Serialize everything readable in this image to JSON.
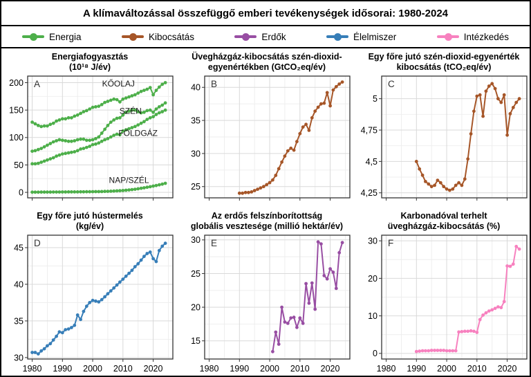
{
  "figure_title": "A klímaváltozással összefüggő emberi tevékenységek idősorai: 1980-2024",
  "legend": {
    "items": [
      {
        "label": "Energia",
        "color": "#4DAF4A"
      },
      {
        "label": "Kibocsátás",
        "color": "#A65628"
      },
      {
        "label": "Erdők",
        "color": "#984EA3"
      },
      {
        "label": "Élelmiszer",
        "color": "#377EB8"
      },
      {
        "label": "Intézkedés",
        "color": "#F781BF"
      }
    ]
  },
  "chart_data": [
    {
      "type": "line",
      "tag": "A",
      "title_line1": "Energiafogyasztás",
      "title_line2": "(10¹⁸ J/év)",
      "color": "#4DAF4A",
      "start_year": 1980,
      "xlim": [
        1978.5,
        2026.5
      ],
      "ylim": [
        -10,
        212
      ],
      "xticks": [
        1980,
        1990,
        2000,
        2010,
        2020
      ],
      "xtick_labels": [
        "1980",
        "1990",
        "2000",
        "2010",
        "2020"
      ],
      "show_x_labels": false,
      "yticks": [
        0,
        50,
        100,
        150,
        200
      ],
      "ytick_labels": [
        "0",
        "50",
        "100",
        "150",
        "200"
      ],
      "series": [
        {
          "name": "KŐOLAJ",
          "values": [
            128,
            125,
            122,
            120,
            121,
            121,
            124,
            126,
            130,
            132,
            134,
            134,
            136,
            136,
            139,
            141,
            144,
            147,
            149,
            152,
            155,
            156,
            157,
            160,
            164,
            166,
            168,
            170,
            169,
            165,
            170,
            172,
            174,
            176,
            178,
            181,
            184,
            186,
            188,
            191,
            178,
            186,
            192,
            197,
            200
          ]
        },
        {
          "name": "SZÉN",
          "values": [
            75,
            76,
            78,
            80,
            83,
            86,
            89,
            92,
            94,
            96,
            95,
            94,
            93,
            93,
            94,
            96,
            97,
            97,
            95,
            95,
            96,
            98,
            101,
            108,
            115,
            122,
            128,
            132,
            135,
            136,
            141,
            146,
            148,
            150,
            150,
            147,
            145,
            146,
            149,
            150,
            146,
            152,
            156,
            159,
            163
          ]
        },
        {
          "name": "FÖLDGÁZ",
          "values": [
            52,
            52,
            53,
            55,
            57,
            59,
            61,
            63,
            66,
            68,
            70,
            71,
            72,
            73,
            74,
            76,
            79,
            80,
            82,
            84,
            87,
            88,
            90,
            93,
            96,
            98,
            101,
            104,
            106,
            105,
            112,
            114,
            116,
            118,
            120,
            123,
            126,
            129,
            133,
            136,
            138,
            142,
            145,
            147,
            150
          ]
        },
        {
          "name": "NAP/SZÉL",
          "values": [
            0.4,
            0.4,
            0.4,
            0.5,
            0.5,
            0.5,
            0.5,
            0.6,
            0.6,
            0.6,
            0.7,
            0.7,
            0.8,
            0.8,
            0.9,
            0.9,
            1.0,
            1.0,
            1.1,
            1.1,
            1.2,
            1.3,
            1.4,
            1.5,
            1.7,
            1.9,
            2.1,
            2.4,
            2.7,
            3.0,
            3.4,
            3.9,
            4.4,
            5.0,
            5.7,
            6.5,
            7.4,
            8.3,
            9.3,
            10.3,
            11.5,
            12.5,
            13.7,
            15.0,
            16.5
          ]
        }
      ],
      "annotations": [
        {
          "text": "KŐOLAJ",
          "x": 2008.5,
          "y": 193
        },
        {
          "text": "SZÉN",
          "x": 2012.5,
          "y": 143
        },
        {
          "text": "FÖLDGÁZ",
          "x": 2015,
          "y": 103
        },
        {
          "text": "NAP/SZÉL",
          "x": 2012,
          "y": 17
        }
      ]
    },
    {
      "type": "line",
      "tag": "B",
      "title_line1": "Üvegházgáz-kibocsátás szén-dioxid-",
      "title_line2": "egyenértékben (GtCO₂eq/év)",
      "color": "#A65628",
      "start_year": 1990,
      "xlim": [
        1978.5,
        2026.5
      ],
      "ylim": [
        23.3,
        41.7
      ],
      "xticks": [
        1980,
        1990,
        2000,
        2010,
        2020
      ],
      "xtick_labels": [
        "1980",
        "1990",
        "2000",
        "2010",
        "2020"
      ],
      "show_x_labels": false,
      "yticks": [
        25,
        30,
        35,
        40
      ],
      "ytick_labels": [
        "25",
        "30",
        "35",
        "40"
      ],
      "series": [
        {
          "name": "Kibocsátás",
          "values": [
            24.0,
            24.0,
            24.1,
            24.1,
            24.2,
            24.4,
            24.6,
            24.8,
            25.0,
            25.3,
            25.6,
            26.0,
            26.7,
            27.7,
            28.7,
            29.6,
            30.4,
            30.8,
            30.5,
            31.8,
            33.0,
            34.0,
            34.4,
            33.5,
            35.4,
            36.4,
            37.0,
            37.5,
            37.6,
            39.2,
            37.2,
            39.6,
            40.1,
            40.5,
            40.8
          ]
        }
      ],
      "annotations": []
    },
    {
      "type": "line",
      "tag": "C",
      "title_line1": "Egy főre jutó szén-dioxid-egyenérték",
      "title_line2": "kibocsátás (tCO₂eq/év)",
      "color": "#A65628",
      "start_year": 1990,
      "xlim": [
        1978.5,
        2026.5
      ],
      "ylim": [
        4.21,
        5.18
      ],
      "xticks": [
        1980,
        1990,
        2000,
        2010,
        2020
      ],
      "xtick_labels": [
        "1980",
        "1990",
        "2000",
        "2010",
        "2020"
      ],
      "show_x_labels": false,
      "yticks": [
        4.25,
        4.5,
        4.75,
        5
      ],
      "ytick_labels": [
        "4,25",
        "4,5",
        "4,75",
        "5"
      ],
      "series": [
        {
          "name": "Kibocsátás/fő",
          "values": [
            4.5,
            4.44,
            4.39,
            4.34,
            4.32,
            4.3,
            4.31,
            4.35,
            4.33,
            4.3,
            4.28,
            4.27,
            4.28,
            4.31,
            4.33,
            4.31,
            4.36,
            4.52,
            4.72,
            4.9,
            5.02,
            5.03,
            4.86,
            5.06,
            5.1,
            5.12,
            5.08,
            5.0,
            4.97,
            5.03,
            4.71,
            4.88,
            4.93,
            4.97,
            5.0
          ]
        }
      ],
      "annotations": []
    },
    {
      "type": "line",
      "tag": "D",
      "title_line1": "Egy főre jutó hústermelés",
      "title_line2": "(kg/év)",
      "color": "#377EB8",
      "start_year": 1980,
      "xlim": [
        1978.5,
        2026.5
      ],
      "ylim": [
        29.8,
        46.7
      ],
      "xticks": [
        1980,
        1990,
        2000,
        2010,
        2020
      ],
      "xtick_labels": [
        "1980",
        "1990",
        "2000",
        "2010",
        "2020"
      ],
      "show_x_labels": true,
      "yticks": [
        30,
        35,
        40,
        45
      ],
      "ytick_labels": [
        "30",
        "35",
        "40",
        "45"
      ],
      "series": [
        {
          "name": "Hústermelés",
          "values": [
            30.7,
            30.7,
            30.5,
            30.9,
            31.2,
            31.6,
            31.9,
            32.4,
            32.9,
            33.5,
            33.4,
            33.8,
            33.9,
            34.1,
            34.4,
            35.8,
            35.2,
            36.3,
            37.0,
            37.5,
            37.8,
            37.7,
            37.6,
            37.9,
            38.3,
            38.7,
            39.1,
            39.5,
            39.9,
            40.3,
            40.7,
            41.1,
            41.5,
            41.9,
            42.4,
            42.8,
            43.3,
            43.8,
            44.2,
            44.4,
            43.5,
            43.1,
            44.6,
            45.2,
            45.6
          ]
        }
      ],
      "annotations": []
    },
    {
      "type": "line",
      "tag": "E",
      "title_line1": "Az erdős felszínborítottság",
      "title_line2": "globális vesztesége (millió hektár/év)",
      "color": "#984EA3",
      "start_year": 2001,
      "xlim": [
        1978.5,
        2026.5
      ],
      "ylim": [
        12.3,
        30.7
      ],
      "xticks": [
        1980,
        1990,
        2000,
        2010,
        2020
      ],
      "xtick_labels": [
        "1980",
        "1990",
        "2000",
        "2010",
        "2020"
      ],
      "show_x_labels": true,
      "yticks": [
        15,
        20,
        25,
        30
      ],
      "ytick_labels": [
        "15",
        "20",
        "25",
        "30"
      ],
      "series": [
        {
          "name": "Erdővesztés",
          "values": [
            13.4,
            16.3,
            14.5,
            20.0,
            17.8,
            17.6,
            18.4,
            18.5,
            17.0,
            18.4,
            17.6,
            23.5,
            20.6,
            23.6,
            19.7,
            29.7,
            29.4,
            24.7,
            24.2,
            25.7,
            25.2,
            22.8,
            28.1,
            29.6
          ]
        }
      ],
      "annotations": []
    },
    {
      "type": "line",
      "tag": "F",
      "title_line1": "Karbonadóval terhelt",
      "title_line2": "üvegházgáz-kibocsátás (%)",
      "color": "#F781BF",
      "start_year": 1990,
      "xlim": [
        1978.5,
        2026.5
      ],
      "ylim": [
        -1.5,
        31.5
      ],
      "xticks": [
        1980,
        1990,
        2000,
        2010,
        2020
      ],
      "xtick_labels": [
        "1980",
        "1990",
        "2000",
        "2010",
        "2020"
      ],
      "show_x_labels": true,
      "yticks": [
        0,
        10,
        20,
        30
      ],
      "ytick_labels": [
        "0",
        "10",
        "20",
        "30"
      ],
      "series": [
        {
          "name": "Karbonadó",
          "values": [
            0.5,
            0.6,
            0.7,
            0.7,
            0.7,
            0.8,
            0.8,
            0.8,
            0.8,
            0.8,
            0.7,
            0.7,
            0.7,
            0.7,
            5.7,
            5.8,
            5.9,
            5.9,
            6.0,
            5.9,
            5.6,
            9.0,
            10.2,
            10.8,
            11.3,
            11.6,
            12.0,
            12.4,
            12.2,
            13.8,
            23.3,
            23.2,
            23.8,
            28.5,
            27.8
          ]
        }
      ],
      "annotations": []
    }
  ]
}
